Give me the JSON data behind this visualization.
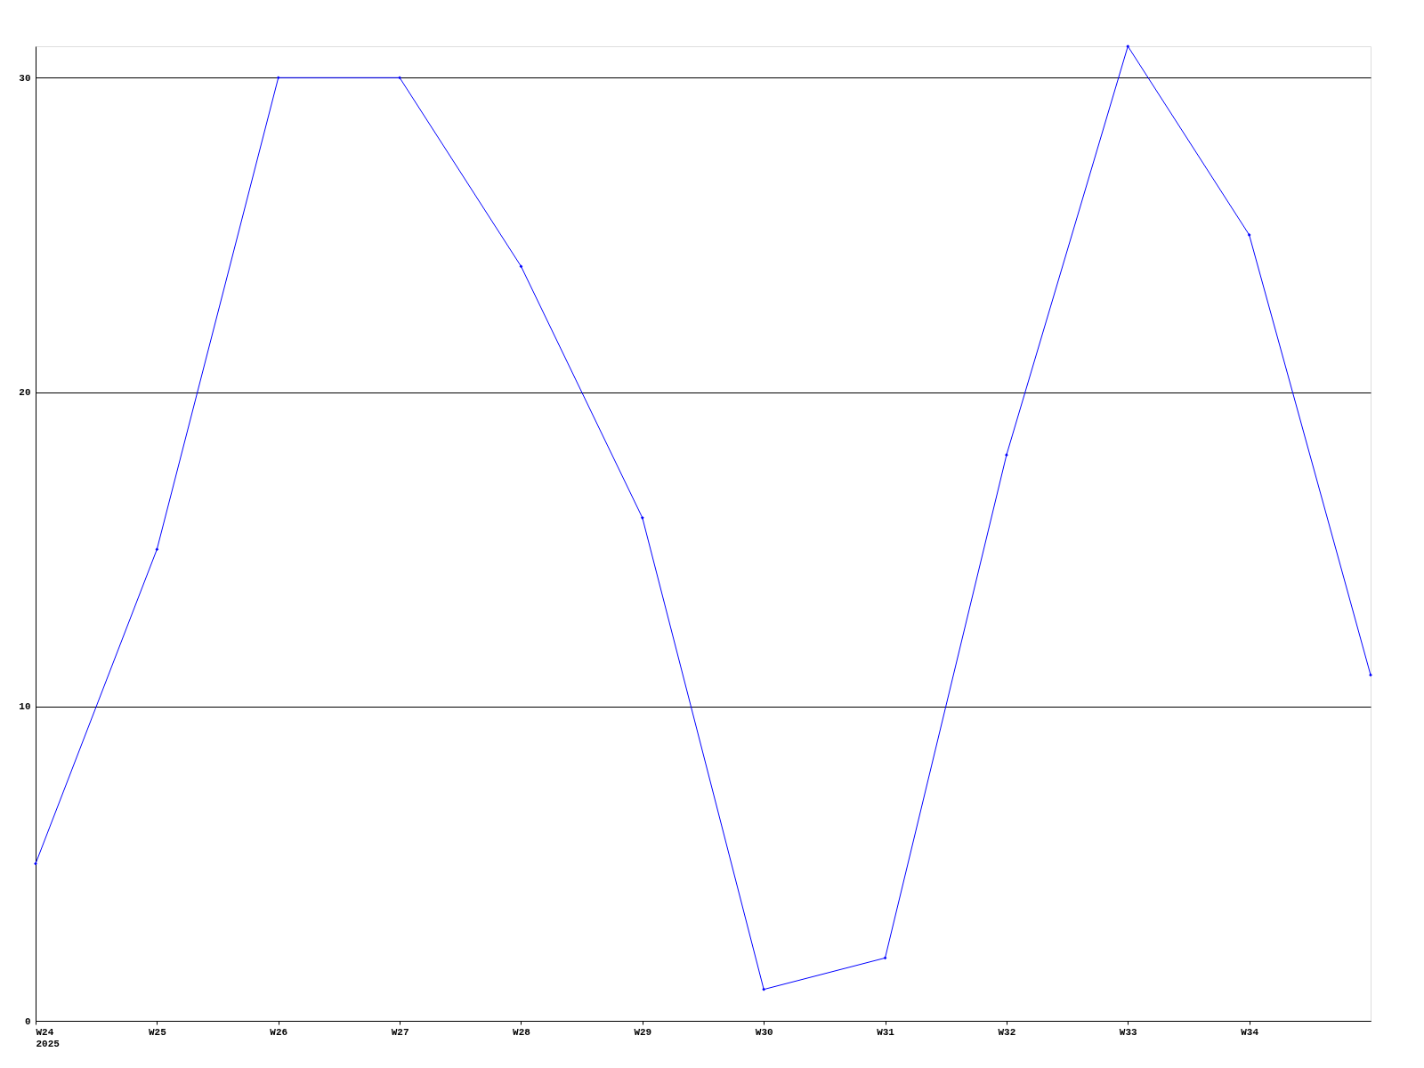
{
  "chart_data": {
    "type": "line",
    "categories": [
      "W24\n2025",
      "W25",
      "W26",
      "W27",
      "W28",
      "W29",
      "W30",
      "W31",
      "W32",
      "W33",
      "W34",
      null
    ],
    "series": [
      {
        "color": "#0000ff",
        "values": [
          5,
          15,
          30,
          30,
          24,
          16,
          1,
          2,
          18,
          31,
          25,
          11
        ]
      }
    ],
    "ylim": [
      0,
      31
    ],
    "yticks": [
      0,
      10,
      20,
      30
    ],
    "grid": "y",
    "marker": "diamond",
    "line_style": "solid"
  }
}
